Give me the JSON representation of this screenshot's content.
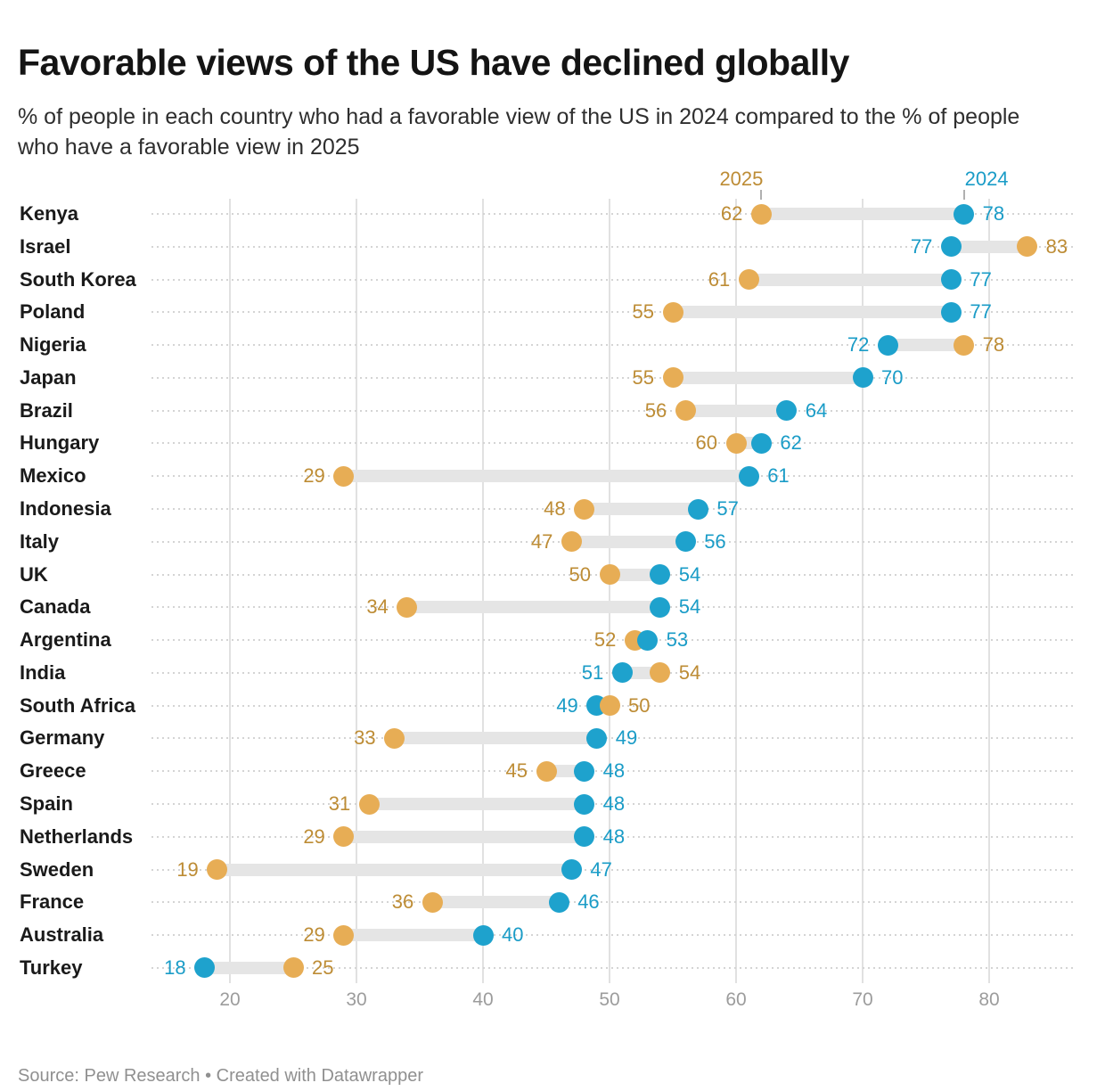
{
  "header": {
    "title": "Favorable views of the US have declined globally",
    "subtitle": "% of people in each country who had a favorable view of the US in 2024 compared to the % of people who have a favorable view in 2025"
  },
  "footer": {
    "source": "Source: Pew Research • Created with Datawrapper"
  },
  "colors": {
    "gold_dot": "#e7ad55",
    "gold_text": "#bd8c35",
    "blue_dot": "#1ea2cd",
    "blue_text": "#1a9cc7",
    "connector": "#e5e5e5",
    "gridline": "#e1e1e1",
    "row_dotted": "#d4d4d4",
    "axis_text": "#9c9c9c"
  },
  "chart_data": {
    "type": "scatter",
    "variant": "dumbbell",
    "title": "Favorable views of the US have declined globally",
    "xlabel": "",
    "ylabel": "",
    "xlim": [
      13,
      87
    ],
    "x_ticks": [
      20,
      30,
      40,
      50,
      60,
      70,
      80
    ],
    "grid": {
      "vertical": "solid",
      "horizontal": "dotted"
    },
    "legend": {
      "position": "top",
      "items": [
        "2025",
        "2024"
      ]
    },
    "value_labels": true,
    "categories": [
      "Kenya",
      "Israel",
      "South Korea",
      "Poland",
      "Nigeria",
      "Japan",
      "Brazil",
      "Hungary",
      "Mexico",
      "Indonesia",
      "Italy",
      "UK",
      "Canada",
      "Argentina",
      "India",
      "South Africa",
      "Germany",
      "Greece",
      "Spain",
      "Netherlands",
      "Sweden",
      "France",
      "Australia",
      "Turkey"
    ],
    "series": [
      {
        "name": "2025",
        "values": [
          62,
          83,
          61,
          55,
          78,
          55,
          56,
          60,
          29,
          48,
          47,
          50,
          34,
          52,
          54,
          50,
          33,
          45,
          31,
          29,
          19,
          36,
          29,
          25
        ]
      },
      {
        "name": "2024",
        "values": [
          78,
          77,
          77,
          77,
          72,
          70,
          64,
          62,
          61,
          57,
          56,
          54,
          54,
          53,
          51,
          49,
          49,
          48,
          48,
          48,
          47,
          46,
          40,
          18
        ]
      }
    ]
  }
}
